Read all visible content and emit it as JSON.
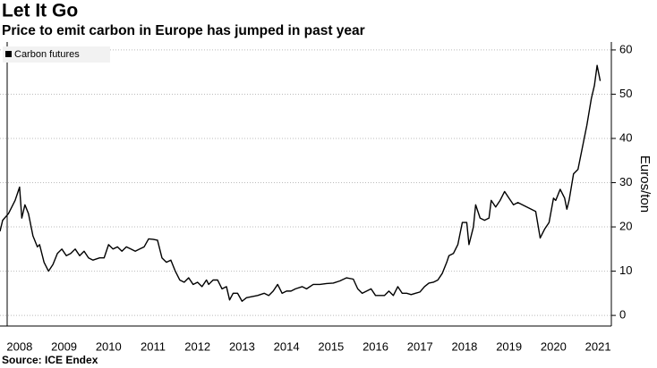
{
  "chart_data": {
    "type": "line",
    "title": "Let It Go",
    "subtitle": "Price to emit carbon in Europe has jumped in past year",
    "y_label": "Euros/ton",
    "source": "Source: ICE Endex",
    "legend_position": "upper-left",
    "grid": true,
    "xlim": [
      2008.06,
      2021.8
    ],
    "xticks": [
      {
        "value": 2008.5,
        "label": "2008"
      },
      {
        "value": 2009.5,
        "label": "2009"
      },
      {
        "value": 2010.5,
        "label": "2010"
      },
      {
        "value": 2011.5,
        "label": "2011"
      },
      {
        "value": 2012.5,
        "label": "2012"
      },
      {
        "value": 2013.5,
        "label": "2013"
      },
      {
        "value": 2014.5,
        "label": "2014"
      },
      {
        "value": 2015.5,
        "label": "2015"
      },
      {
        "value": 2016.5,
        "label": "2016"
      },
      {
        "value": 2017.5,
        "label": "2017"
      },
      {
        "value": 2018.5,
        "label": "2018"
      },
      {
        "value": 2019.5,
        "label": "2019"
      },
      {
        "value": 2020.5,
        "label": "2020"
      },
      {
        "value": 2021.5,
        "label": "2021"
      }
    ],
    "ylim": [
      -2.4,
      61.8
    ],
    "yticks": [
      0,
      10,
      20,
      30,
      40,
      50,
      60
    ],
    "x": [
      2008.06,
      2008.12,
      2008.25,
      2008.4,
      2008.5,
      2008.55,
      2008.62,
      2008.7,
      2008.8,
      2008.9,
      2008.95,
      2009.05,
      2009.15,
      2009.25,
      2009.35,
      2009.45,
      2009.55,
      2009.65,
      2009.75,
      2009.85,
      2009.95,
      2010.05,
      2010.15,
      2010.3,
      2010.4,
      2010.5,
      2010.6,
      2010.7,
      2010.8,
      2010.9,
      2011.0,
      2011.1,
      2011.2,
      2011.3,
      2011.4,
      2011.5,
      2011.6,
      2011.7,
      2011.8,
      2011.9,
      2012.0,
      2012.1,
      2012.2,
      2012.3,
      2012.4,
      2012.5,
      2012.6,
      2012.7,
      2012.75,
      2012.85,
      2012.95,
      2013.05,
      2013.15,
      2013.22,
      2013.3,
      2013.4,
      2013.5,
      2013.6,
      2013.7,
      2013.85,
      2014.0,
      2014.1,
      2014.2,
      2014.3,
      2014.4,
      2014.5,
      2014.6,
      2014.7,
      2014.85,
      2014.95,
      2015.1,
      2015.25,
      2015.4,
      2015.55,
      2015.7,
      2015.85,
      2016.0,
      2016.1,
      2016.2,
      2016.3,
      2016.4,
      2016.5,
      2016.6,
      2016.7,
      2016.8,
      2016.9,
      2017.0,
      2017.1,
      2017.2,
      2017.3,
      2017.4,
      2017.5,
      2017.6,
      2017.7,
      2017.8,
      2017.9,
      2018.0,
      2018.1,
      2018.15,
      2018.25,
      2018.35,
      2018.45,
      2018.55,
      2018.6,
      2018.7,
      2018.75,
      2018.85,
      2018.95,
      2019.05,
      2019.1,
      2019.2,
      2019.3,
      2019.4,
      2019.5,
      2019.6,
      2019.7,
      2019.8,
      2019.9,
      2020.0,
      2020.1,
      2020.2,
      2020.3,
      2020.4,
      2020.5,
      2020.55,
      2020.65,
      2020.75,
      2020.8,
      2020.85,
      2020.9,
      2020.95,
      2021.05,
      2021.15,
      2021.25,
      2021.35,
      2021.42,
      2021.48,
      2021.55
    ],
    "series": [
      {
        "name": "Carbon futures",
        "color": "#000000",
        "values": [
          19,
          21.5,
          23,
          26,
          29,
          22,
          25,
          23,
          18,
          15.5,
          16,
          12,
          10,
          11.5,
          14,
          15,
          13.5,
          14,
          15,
          13.5,
          14.5,
          13,
          12.5,
          13,
          13,
          16,
          15,
          15.5,
          14.5,
          15.5,
          15,
          14.5,
          15,
          15.5,
          17.3,
          17.2,
          17,
          13,
          12,
          12.5,
          10,
          8,
          7.5,
          8.5,
          7,
          7.5,
          6.5,
          8,
          7,
          8,
          8,
          6,
          6.5,
          3.5,
          5,
          5,
          3.2,
          4,
          4.2,
          4.5,
          5,
          4.5,
          5.5,
          7,
          5,
          5.5,
          5.5,
          6,
          6.5,
          6,
          7,
          7,
          7.2,
          7.3,
          7.8,
          8.5,
          8.2,
          6,
          5,
          5.5,
          6,
          4.5,
          4.5,
          4.5,
          5.5,
          4.5,
          6.5,
          5,
          5,
          4.7,
          5,
          5.3,
          6.5,
          7.3,
          7.5,
          8,
          9.5,
          12,
          13.5,
          14,
          16,
          21,
          21,
          16,
          20,
          25,
          22,
          21.5,
          22,
          26,
          24.5,
          26,
          28,
          26.5,
          25,
          25.5,
          25,
          24.5,
          24,
          23.5,
          17.5,
          19.5,
          21,
          26.5,
          26,
          28.5,
          26.5,
          24,
          26,
          29,
          32,
          33,
          38,
          43,
          49,
          52,
          56.5,
          53
        ]
      }
    ]
  }
}
